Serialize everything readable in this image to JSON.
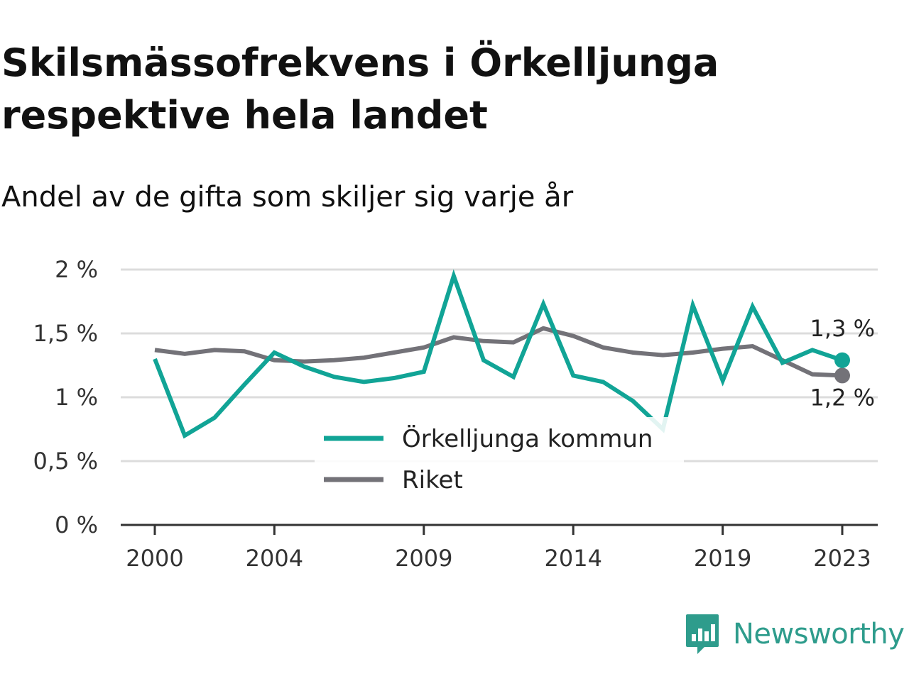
{
  "title": "Skilsmässofrekvens i Örkelljunga respektive hela landet",
  "subtitle": "Andel av de gifta som skiljer sig varje år",
  "brand": {
    "name": "Newsworthy",
    "icon": "bar-chart-speech-bubble-icon",
    "color": "#2e9c8c"
  },
  "chart_data": {
    "type": "line",
    "title": "Skilsmässofrekvens i Örkelljunga respektive hela landet",
    "subtitle": "Andel av de gifta som skiljer sig varje år",
    "xlabel": "",
    "ylabel": "",
    "x": [
      2000,
      2001,
      2002,
      2003,
      2004,
      2005,
      2006,
      2007,
      2008,
      2009,
      2010,
      2011,
      2012,
      2013,
      2014,
      2015,
      2016,
      2017,
      2018,
      2019,
      2020,
      2021,
      2022,
      2023
    ],
    "xlim": [
      2000,
      2023
    ],
    "x_ticks": [
      2000,
      2004,
      2009,
      2014,
      2019,
      2023
    ],
    "ylim": [
      0,
      2
    ],
    "y_ticks": [
      {
        "value": 0,
        "label": "0 %"
      },
      {
        "value": 0.5,
        "label": "0,5 %"
      },
      {
        "value": 1,
        "label": "1 %"
      },
      {
        "value": 1.5,
        "label": "1,5 %"
      },
      {
        "value": 2,
        "label": "2 %"
      }
    ],
    "grid": true,
    "legend_position": "center",
    "series": [
      {
        "name": "Örkelljunga kommun",
        "color": "#11a496",
        "values": [
          1.3,
          0.7,
          0.84,
          1.1,
          1.35,
          1.24,
          1.16,
          1.12,
          1.15,
          1.2,
          1.95,
          1.29,
          1.16,
          1.73,
          1.17,
          1.12,
          0.97,
          0.75,
          1.72,
          1.13,
          1.71,
          1.27,
          1.37,
          1.29
        ],
        "end_label": "1,3 %"
      },
      {
        "name": "Riket",
        "color": "#737278",
        "values": [
          1.37,
          1.34,
          1.37,
          1.36,
          1.29,
          1.28,
          1.29,
          1.31,
          1.35,
          1.39,
          1.47,
          1.44,
          1.43,
          1.54,
          1.48,
          1.39,
          1.35,
          1.33,
          1.35,
          1.38,
          1.4,
          1.29,
          1.18,
          1.17
        ],
        "end_label": "1,2 %"
      }
    ]
  }
}
